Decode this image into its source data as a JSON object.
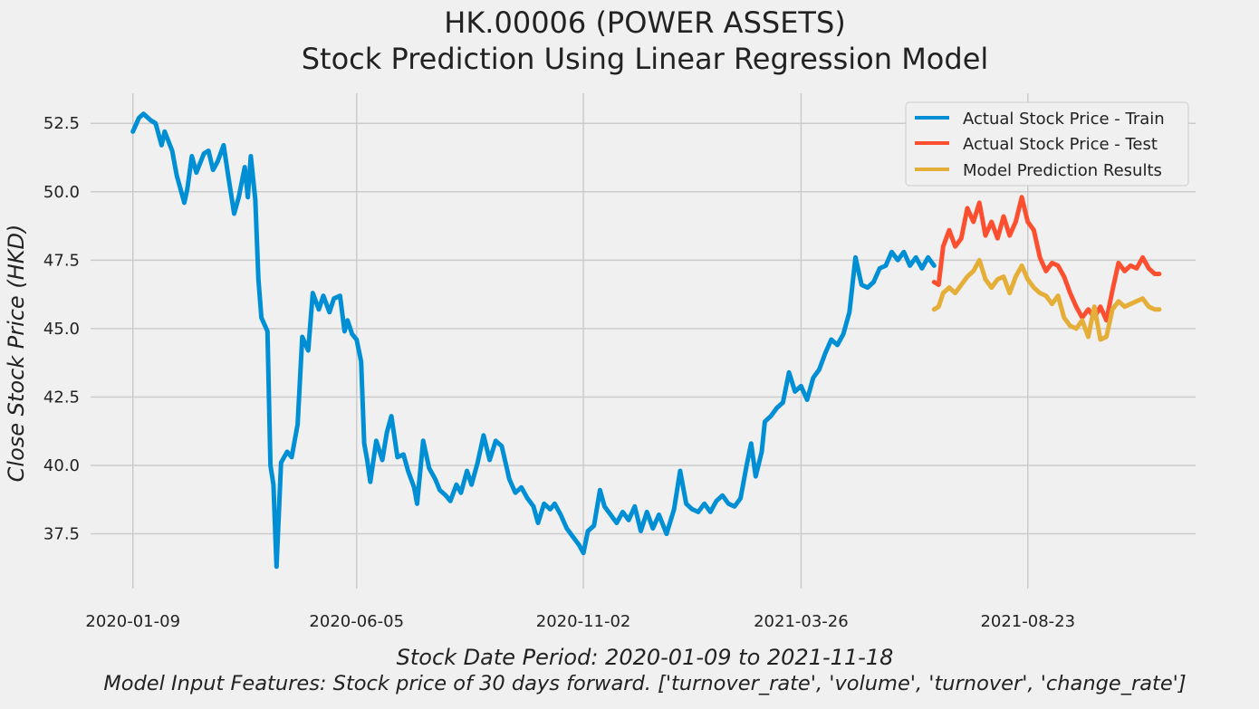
{
  "chart_data": {
    "type": "line",
    "title_line1": "HK.00006 (POWER ASSETS)",
    "title_line2": "Stock Prediction Using Linear Regression Model",
    "ylabel": "Close Stock Price (HKD)",
    "xlabel_line1": "Stock Date Period:  2020-01-09 to 2021-11-18",
    "xlabel_line2": "Model Input Features:  Stock price of 30 days forward. ['turnover_rate', 'volume', 'turnover', 'change_rate']",
    "x_ticks": [
      "2020-01-09",
      "2020-06-05",
      "2020-11-02",
      "2021-03-26",
      "2021-08-23"
    ],
    "y_ticks": [
      37.5,
      40.0,
      42.5,
      45.0,
      47.5,
      50.0,
      52.5
    ],
    "ylim": [
      35.5,
      53.6
    ],
    "xlim": [
      "2019-12-12",
      "2021-12-12"
    ],
    "grid": true,
    "legend_position": "top-right",
    "colors": {
      "train": "#008fd5",
      "test": "#fc4f30",
      "prediction": "#e5ae38"
    },
    "series": [
      {
        "name": "Actual Stock Price - Train",
        "points": [
          [
            "2020-01-09",
            52.2
          ],
          [
            "2020-01-13",
            52.7
          ],
          [
            "2020-01-16",
            52.85
          ],
          [
            "2020-01-21",
            52.6
          ],
          [
            "2020-01-24",
            52.5
          ],
          [
            "2020-01-28",
            51.7
          ],
          [
            "2020-01-30",
            52.2
          ],
          [
            "2020-02-04",
            51.5
          ],
          [
            "2020-02-07",
            50.6
          ],
          [
            "2020-02-12",
            49.6
          ],
          [
            "2020-02-14",
            50.1
          ],
          [
            "2020-02-17",
            51.3
          ],
          [
            "2020-02-20",
            50.7
          ],
          [
            "2020-02-25",
            51.4
          ],
          [
            "2020-02-28",
            51.5
          ],
          [
            "2020-03-02",
            50.8
          ],
          [
            "2020-03-05",
            51.1
          ],
          [
            "2020-03-09",
            51.7
          ],
          [
            "2020-03-12",
            50.6
          ],
          [
            "2020-03-16",
            49.2
          ],
          [
            "2020-03-19",
            49.8
          ],
          [
            "2020-03-23",
            50.9
          ],
          [
            "2020-03-25",
            49.8
          ],
          [
            "2020-03-27",
            51.3
          ],
          [
            "2020-03-30",
            49.7
          ],
          [
            "2020-04-01",
            46.8
          ],
          [
            "2020-04-03",
            45.4
          ],
          [
            "2020-04-07",
            44.9
          ],
          [
            "2020-04-09",
            40.0
          ],
          [
            "2020-04-11",
            39.3
          ],
          [
            "2020-04-13",
            36.3
          ],
          [
            "2020-04-16",
            40.1
          ],
          [
            "2020-04-20",
            40.5
          ],
          [
            "2020-04-23",
            40.3
          ],
          [
            "2020-04-27",
            41.5
          ],
          [
            "2020-04-30",
            44.7
          ],
          [
            "2020-05-04",
            44.2
          ],
          [
            "2020-05-07",
            46.3
          ],
          [
            "2020-05-11",
            45.7
          ],
          [
            "2020-05-14",
            46.2
          ],
          [
            "2020-05-18",
            45.6
          ],
          [
            "2020-05-21",
            46.1
          ],
          [
            "2020-05-25",
            46.2
          ],
          [
            "2020-05-28",
            44.9
          ],
          [
            "2020-05-30",
            45.3
          ],
          [
            "2020-06-02",
            44.8
          ],
          [
            "2020-06-05",
            44.6
          ],
          [
            "2020-06-08",
            43.8
          ],
          [
            "2020-06-10",
            40.8
          ],
          [
            "2020-06-12",
            40.2
          ],
          [
            "2020-06-14",
            39.4
          ],
          [
            "2020-06-18",
            40.9
          ],
          [
            "2020-06-22",
            40.2
          ],
          [
            "2020-06-25",
            41.2
          ],
          [
            "2020-06-28",
            41.8
          ],
          [
            "2020-07-02",
            40.3
          ],
          [
            "2020-07-06",
            40.4
          ],
          [
            "2020-07-09",
            39.8
          ],
          [
            "2020-07-13",
            39.2
          ],
          [
            "2020-07-15",
            38.6
          ],
          [
            "2020-07-19",
            40.9
          ],
          [
            "2020-07-23",
            39.9
          ],
          [
            "2020-07-27",
            39.5
          ],
          [
            "2020-07-30",
            39.1
          ],
          [
            "2020-08-03",
            38.9
          ],
          [
            "2020-08-06",
            38.7
          ],
          [
            "2020-08-10",
            39.3
          ],
          [
            "2020-08-13",
            39.0
          ],
          [
            "2020-08-17",
            39.8
          ],
          [
            "2020-08-20",
            39.3
          ],
          [
            "2020-08-24",
            40.1
          ],
          [
            "2020-08-28",
            41.1
          ],
          [
            "2020-09-01",
            40.2
          ],
          [
            "2020-09-05",
            40.9
          ],
          [
            "2020-09-09",
            40.7
          ],
          [
            "2020-09-14",
            39.5
          ],
          [
            "2020-09-18",
            39.0
          ],
          [
            "2020-09-22",
            39.2
          ],
          [
            "2020-09-26",
            38.8
          ],
          [
            "2020-09-30",
            38.5
          ],
          [
            "2020-10-03",
            37.9
          ],
          [
            "2020-10-07",
            38.6
          ],
          [
            "2020-10-11",
            38.4
          ],
          [
            "2020-10-14",
            38.6
          ],
          [
            "2020-10-18",
            38.2
          ],
          [
            "2020-10-22",
            37.7
          ],
          [
            "2020-10-26",
            37.4
          ],
          [
            "2020-10-30",
            37.1
          ],
          [
            "2020-11-02",
            36.8
          ],
          [
            "2020-11-05",
            37.6
          ],
          [
            "2020-11-09",
            37.8
          ],
          [
            "2020-11-13",
            39.1
          ],
          [
            "2020-11-16",
            38.5
          ],
          [
            "2020-11-20",
            38.2
          ],
          [
            "2020-11-24",
            37.9
          ],
          [
            "2020-11-28",
            38.3
          ],
          [
            "2020-12-02",
            38.0
          ],
          [
            "2020-12-06",
            38.5
          ],
          [
            "2020-12-10",
            37.6
          ],
          [
            "2020-12-14",
            38.3
          ],
          [
            "2020-12-18",
            37.7
          ],
          [
            "2020-12-22",
            38.2
          ],
          [
            "2020-12-27",
            37.5
          ],
          [
            "2021-01-01",
            38.4
          ],
          [
            "2021-01-05",
            39.8
          ],
          [
            "2021-01-09",
            38.6
          ],
          [
            "2021-01-13",
            38.4
          ],
          [
            "2021-01-17",
            38.3
          ],
          [
            "2021-01-21",
            38.6
          ],
          [
            "2021-01-25",
            38.3
          ],
          [
            "2021-01-29",
            38.7
          ],
          [
            "2021-02-02",
            38.9
          ],
          [
            "2021-02-06",
            38.6
          ],
          [
            "2021-02-10",
            38.5
          ],
          [
            "2021-02-14",
            38.8
          ],
          [
            "2021-02-18",
            40.0
          ],
          [
            "2021-02-21",
            40.8
          ],
          [
            "2021-02-24",
            39.6
          ],
          [
            "2021-02-28",
            40.5
          ],
          [
            "2021-03-02",
            41.6
          ],
          [
            "2021-03-06",
            41.8
          ],
          [
            "2021-03-10",
            42.1
          ],
          [
            "2021-03-14",
            42.3
          ],
          [
            "2021-03-18",
            43.4
          ],
          [
            "2021-03-22",
            42.7
          ],
          [
            "2021-03-26",
            42.9
          ],
          [
            "2021-03-30",
            42.4
          ],
          [
            "2021-04-03",
            43.2
          ],
          [
            "2021-04-07",
            43.5
          ],
          [
            "2021-04-11",
            44.1
          ],
          [
            "2021-04-15",
            44.6
          ],
          [
            "2021-04-19",
            44.4
          ],
          [
            "2021-04-23",
            44.8
          ],
          [
            "2021-04-27",
            45.6
          ],
          [
            "2021-05-01",
            47.6
          ],
          [
            "2021-05-05",
            46.6
          ],
          [
            "2021-05-09",
            46.5
          ],
          [
            "2021-05-13",
            46.7
          ],
          [
            "2021-05-17",
            47.2
          ],
          [
            "2021-05-21",
            47.3
          ],
          [
            "2021-05-25",
            47.8
          ],
          [
            "2021-05-29",
            47.5
          ],
          [
            "2021-06-02",
            47.8
          ],
          [
            "2021-06-06",
            47.3
          ],
          [
            "2021-06-10",
            47.6
          ],
          [
            "2021-06-14",
            47.2
          ],
          [
            "2021-06-18",
            47.6
          ],
          [
            "2021-06-22",
            47.3
          ]
        ]
      },
      {
        "name": "Actual Stock Price - Test",
        "points": [
          [
            "2021-06-22",
            46.7
          ],
          [
            "2021-06-25",
            46.6
          ],
          [
            "2021-06-28",
            48.0
          ],
          [
            "2021-07-02",
            48.6
          ],
          [
            "2021-07-06",
            48.0
          ],
          [
            "2021-07-10",
            48.3
          ],
          [
            "2021-07-14",
            49.4
          ],
          [
            "2021-07-18",
            48.9
          ],
          [
            "2021-07-22",
            49.6
          ],
          [
            "2021-07-26",
            48.4
          ],
          [
            "2021-07-30",
            48.9
          ],
          [
            "2021-08-03",
            48.3
          ],
          [
            "2021-08-07",
            49.1
          ],
          [
            "2021-08-11",
            48.4
          ],
          [
            "2021-08-15",
            48.9
          ],
          [
            "2021-08-19",
            49.8
          ],
          [
            "2021-08-23",
            48.9
          ],
          [
            "2021-08-27",
            48.6
          ],
          [
            "2021-08-31",
            47.6
          ],
          [
            "2021-09-04",
            47.1
          ],
          [
            "2021-09-08",
            47.4
          ],
          [
            "2021-09-12",
            47.3
          ],
          [
            "2021-09-16",
            46.9
          ],
          [
            "2021-09-20",
            46.3
          ],
          [
            "2021-09-24",
            45.8
          ],
          [
            "2021-09-28",
            45.4
          ],
          [
            "2021-10-02",
            45.7
          ],
          [
            "2021-10-06",
            45.4
          ],
          [
            "2021-10-10",
            45.8
          ],
          [
            "2021-10-14",
            45.3
          ],
          [
            "2021-10-18",
            46.4
          ],
          [
            "2021-10-22",
            47.4
          ],
          [
            "2021-10-26",
            47.1
          ],
          [
            "2021-10-30",
            47.3
          ],
          [
            "2021-11-03",
            47.2
          ],
          [
            "2021-11-07",
            47.6
          ],
          [
            "2021-11-11",
            47.2
          ],
          [
            "2021-11-15",
            47.0
          ],
          [
            "2021-11-18",
            47.0
          ]
        ]
      },
      {
        "name": "Model Prediction Results",
        "points": [
          [
            "2021-06-22",
            45.7
          ],
          [
            "2021-06-25",
            45.8
          ],
          [
            "2021-06-28",
            46.3
          ],
          [
            "2021-07-02",
            46.5
          ],
          [
            "2021-07-06",
            46.3
          ],
          [
            "2021-07-10",
            46.6
          ],
          [
            "2021-07-14",
            46.9
          ],
          [
            "2021-07-18",
            47.1
          ],
          [
            "2021-07-22",
            47.5
          ],
          [
            "2021-07-26",
            46.8
          ],
          [
            "2021-07-30",
            46.5
          ],
          [
            "2021-08-03",
            46.8
          ],
          [
            "2021-08-07",
            46.9
          ],
          [
            "2021-08-11",
            46.3
          ],
          [
            "2021-08-15",
            46.9
          ],
          [
            "2021-08-19",
            47.3
          ],
          [
            "2021-08-23",
            46.8
          ],
          [
            "2021-08-27",
            46.5
          ],
          [
            "2021-08-31",
            46.3
          ],
          [
            "2021-09-04",
            46.2
          ],
          [
            "2021-09-08",
            45.9
          ],
          [
            "2021-09-12",
            46.2
          ],
          [
            "2021-09-16",
            45.4
          ],
          [
            "2021-09-20",
            45.1
          ],
          [
            "2021-09-24",
            45.0
          ],
          [
            "2021-09-28",
            45.3
          ],
          [
            "2021-10-02",
            44.7
          ],
          [
            "2021-10-06",
            45.8
          ],
          [
            "2021-10-10",
            44.6
          ],
          [
            "2021-10-14",
            44.7
          ],
          [
            "2021-10-18",
            45.7
          ],
          [
            "2021-10-22",
            46.0
          ],
          [
            "2021-10-26",
            45.8
          ],
          [
            "2021-10-30",
            45.9
          ],
          [
            "2021-11-03",
            46.0
          ],
          [
            "2021-11-07",
            46.1
          ],
          [
            "2021-11-11",
            45.8
          ],
          [
            "2021-11-15",
            45.7
          ],
          [
            "2021-11-18",
            45.7
          ]
        ]
      }
    ]
  }
}
